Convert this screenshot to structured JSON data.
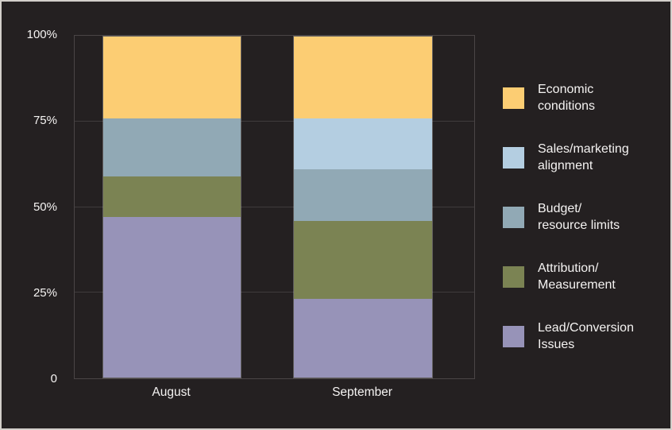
{
  "page": {
    "background_color": "#242021",
    "outer_border_color": "#d3cfca",
    "gridline_color": "#3f3b3c",
    "text_color": "#f5f3f2"
  },
  "chart_data": {
    "type": "bar",
    "stacked": true,
    "title": "",
    "xlabel": "",
    "ylabel": "",
    "categories": [
      "August",
      "September"
    ],
    "series": [
      {
        "name": "Lead/Conversion Issues",
        "color": "#9793b8",
        "values": [
          47,
          23
        ]
      },
      {
        "name": "Attribution/Measurement",
        "color": "#7b8353",
        "values": [
          12,
          23
        ]
      },
      {
        "name": "Budget/resource limits",
        "color": "#91a9b5",
        "values": [
          17,
          15
        ]
      },
      {
        "name": "Sales/marketing alignment",
        "color": "#b4cee1",
        "values": [
          0,
          15
        ]
      },
      {
        "name": "Economic conditions",
        "color": "#fccd73",
        "values": [
          24,
          24
        ]
      }
    ],
    "ylim": [
      0,
      100
    ],
    "y_ticks": [
      {
        "label": "100%",
        "value": 100
      },
      {
        "label": "75%",
        "value": 75
      },
      {
        "label": "50%",
        "value": 50
      },
      {
        "label": "25%",
        "value": 25
      },
      {
        "label": "0",
        "value": 0
      }
    ],
    "grid": "horizontal",
    "legend": {
      "position": "right",
      "items": [
        {
          "lines": [
            "Economic",
            "conditions"
          ],
          "color": "#fccd73"
        },
        {
          "lines": [
            "Sales/marketing",
            "alignment"
          ],
          "color": "#b4cee1"
        },
        {
          "lines": [
            "Budget/",
            "resource limits"
          ],
          "color": "#91a9b5"
        },
        {
          "lines": [
            "Attribution/",
            "Measurement"
          ],
          "color": "#7b8353"
        },
        {
          "lines": [
            "Lead/Conversion",
            "Issues"
          ],
          "color": "#9793b8"
        }
      ]
    }
  }
}
